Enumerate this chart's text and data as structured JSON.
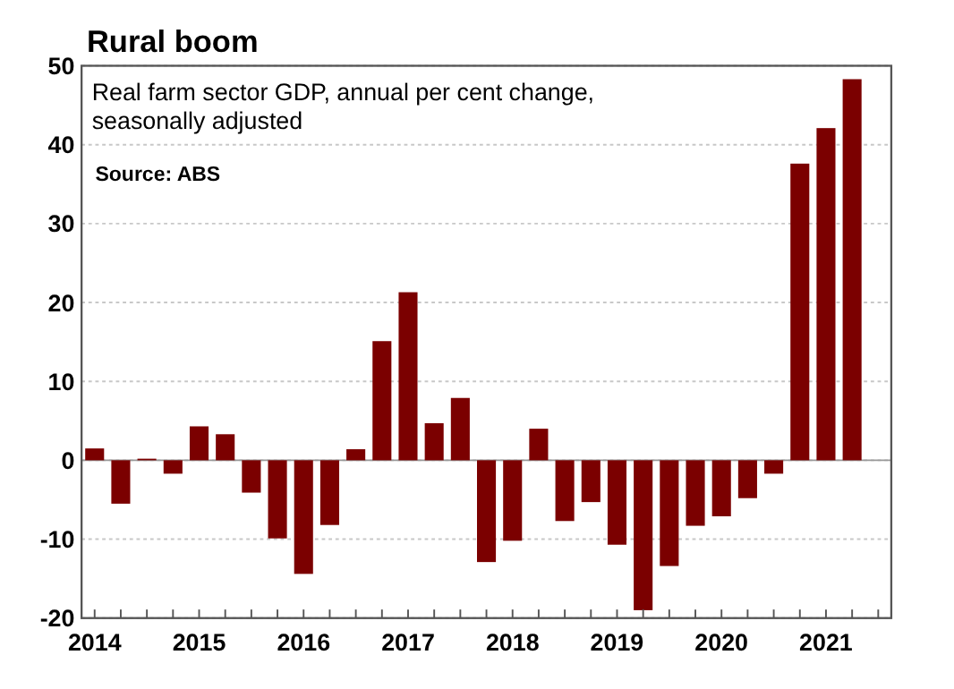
{
  "chart_data": {
    "type": "bar",
    "title": "Rural boom",
    "subtitle": "Real farm sector GDP, annual per cent change, seasonally adjusted",
    "annotations": [
      "Source: ABS"
    ],
    "categories": [
      "2014",
      null,
      null,
      null,
      "2015",
      null,
      null,
      null,
      "2016",
      null,
      null,
      null,
      "2017",
      null,
      null,
      null,
      "2018",
      null,
      null,
      null,
      "2019",
      null,
      null,
      null,
      "2020",
      null,
      null,
      null,
      "2021",
      null
    ],
    "values": [
      1.5,
      -5.5,
      0.2,
      -1.7,
      4.3,
      3.3,
      -4.1,
      -9.9,
      -14.4,
      -8.2,
      1.4,
      15.1,
      21.3,
      4.7,
      7.9,
      -12.9,
      -10.2,
      4.0,
      -7.7,
      -5.3,
      -10.7,
      -19,
      -13.4,
      -8.3,
      -7.1,
      -4.8,
      -1.7,
      37.6,
      42.1,
      48.3
    ],
    "color": "#7b0000",
    "ylim": [
      -20,
      50
    ],
    "yticks": [
      -20,
      -10,
      0,
      10,
      20,
      30,
      40,
      50
    ],
    "grid": "y"
  }
}
